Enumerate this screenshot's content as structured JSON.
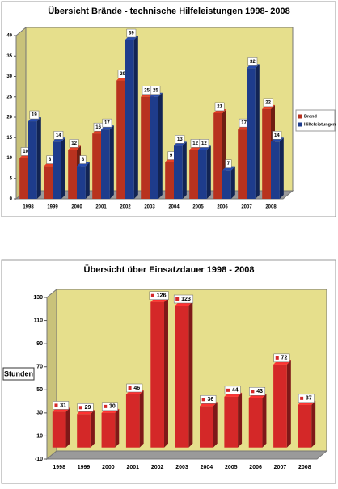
{
  "chart_data": [
    {
      "type": "bar",
      "title": "Übersicht Brände - technische Hilfeleistungen 1998- 2008",
      "categories": [
        "1998",
        "1999",
        "2000",
        "2001",
        "2002",
        "2003",
        "2004",
        "2005",
        "2006",
        "2007",
        "2008"
      ],
      "series": [
        {
          "name": "Brand",
          "color": "#b8321f",
          "values": [
            10,
            8,
            12,
            16,
            29,
            25,
            9,
            12,
            21,
            17,
            22
          ]
        },
        {
          "name": "Hilfeleistungen",
          "color": "#1e3c8c",
          "values": [
            19,
            14,
            8,
            17,
            39,
            25,
            13,
            12,
            7,
            32,
            14
          ]
        }
      ],
      "ylim": [
        0,
        40
      ],
      "yticks": [
        0,
        5,
        10,
        15,
        20,
        25,
        30,
        35,
        40
      ],
      "legend": "right"
    },
    {
      "type": "bar",
      "title": "Übersicht über Einsatzdauer 1998 - 2008",
      "y_label": "Stunden",
      "categories": [
        "1998",
        "1999",
        "2000",
        "2001",
        "2002",
        "2003",
        "2004",
        "2005",
        "2006",
        "2007",
        "2008"
      ],
      "values": [
        31,
        29,
        30,
        46,
        126,
        123,
        36,
        44,
        43,
        72,
        37
      ],
      "color": "#d42828",
      "ylim": [
        -10,
        130
      ],
      "yticks": [
        -10,
        10,
        30,
        50,
        70,
        90,
        110,
        130
      ]
    }
  ]
}
